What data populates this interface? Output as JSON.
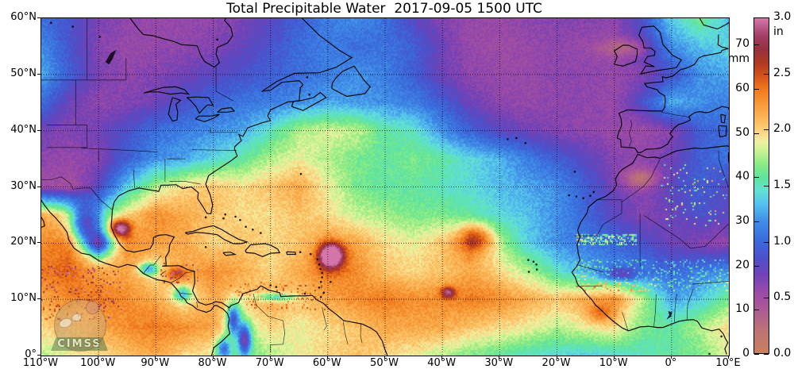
{
  "title": "Total Precipitable Water  2017-09-05 1500 UTC",
  "axes": {
    "x_tick_labels": [
      "110°W",
      "100°W",
      "90°W",
      "80°W",
      "70°W",
      "60°W",
      "50°W",
      "40°W",
      "30°W",
      "20°W",
      "10°W",
      "0°",
      "10°E"
    ],
    "y_tick_labels": [
      "0°",
      "10°N",
      "20°N",
      "30°N",
      "40°N",
      "50°N",
      "60°N"
    ],
    "lon_range": [
      -110,
      10
    ],
    "lat_range": [
      0,
      60
    ]
  },
  "colorbar": {
    "mm_ticks": [
      0,
      10,
      20,
      30,
      40,
      50,
      60,
      70
    ],
    "in_ticks": [
      "0.0",
      "0.5",
      "1.0",
      "1.5",
      "2.0",
      "2.5",
      "3.0"
    ],
    "mm_unit_label": "mm",
    "in_unit_label": "in",
    "max_mm": 76.2
  },
  "watermark": {
    "text": "CIMSS"
  },
  "chart_data": {
    "type": "heatmap",
    "quantity": "total precipitable water",
    "units": "mm",
    "lon_start": -110,
    "lon_step": 5,
    "lat_start": 60,
    "lat_step": -5,
    "grid": [
      [
        26,
        22,
        17,
        15,
        14,
        14,
        15,
        17,
        20,
        24,
        28,
        30,
        26,
        20,
        16,
        14,
        14,
        15,
        16,
        16,
        15,
        22,
        35,
        42,
        34
      ],
      [
        30,
        22,
        16,
        14,
        14,
        15,
        16,
        19,
        22,
        26,
        28,
        26,
        27,
        24,
        18,
        14,
        13,
        14,
        15,
        14,
        14,
        20,
        30,
        34,
        36
      ],
      [
        32,
        24,
        17,
        15,
        16,
        18,
        20,
        22,
        24,
        26,
        28,
        30,
        28,
        24,
        18,
        15,
        14,
        14,
        15,
        15,
        14,
        16,
        22,
        30,
        32
      ],
      [
        26,
        18,
        15,
        16,
        18,
        22,
        25,
        27,
        28,
        30,
        32,
        31,
        30,
        28,
        24,
        18,
        15,
        14,
        15,
        15,
        14,
        22,
        33,
        30,
        28
      ],
      [
        18,
        16,
        18,
        22,
        26,
        28,
        30,
        32,
        38,
        45,
        47,
        46,
        40,
        38,
        30,
        24,
        20,
        18,
        16,
        15,
        14,
        13,
        16,
        24,
        26
      ],
      [
        15,
        14,
        16,
        24,
        30,
        32,
        36,
        40,
        45,
        48,
        45,
        42,
        40,
        42,
        40,
        36,
        33,
        28,
        24,
        20,
        16,
        15,
        18,
        24,
        27
      ],
      [
        13,
        12,
        20,
        35,
        45,
        50,
        52,
        50,
        52,
        55,
        48,
        42,
        40,
        40,
        38,
        36,
        34,
        32,
        30,
        24,
        18,
        16,
        20,
        24,
        20
      ],
      [
        55,
        50,
        38,
        50,
        58,
        55,
        52,
        50,
        50,
        52,
        50,
        46,
        44,
        42,
        42,
        40,
        36,
        34,
        30,
        25,
        20,
        16,
        18,
        22,
        20
      ],
      [
        58,
        60,
        40,
        58,
        56,
        55,
        50,
        52,
        50,
        52,
        56,
        55,
        50,
        48,
        52,
        58,
        45,
        35,
        30,
        28,
        25,
        22,
        18,
        16,
        14
      ],
      [
        60,
        62,
        55,
        55,
        48,
        55,
        58,
        55,
        50,
        55,
        60,
        58,
        52,
        50,
        52,
        55,
        50,
        45,
        38,
        32,
        30,
        28,
        25,
        28,
        30
      ],
      [
        55,
        58,
        60,
        58,
        55,
        48,
        55,
        50,
        55,
        52,
        55,
        58,
        60,
        58,
        58,
        60,
        58,
        55,
        52,
        55,
        58,
        45,
        32,
        35,
        42
      ],
      [
        50,
        52,
        55,
        58,
        60,
        58,
        55,
        45,
        50,
        48,
        50,
        52,
        55,
        55,
        55,
        52,
        50,
        48,
        45,
        48,
        50,
        42,
        40,
        45,
        50
      ],
      [
        45,
        48,
        50,
        52,
        55,
        50,
        48,
        40,
        45,
        48,
        50,
        52,
        50,
        48,
        45,
        42,
        40,
        38,
        36,
        35,
        36,
        38,
        40,
        42,
        48
      ]
    ],
    "features": [
      {
        "name": "hurricane-irma",
        "lon": -59.4,
        "lat": 17.8,
        "amp": 34,
        "sx": 1.5,
        "sy": 1.5
      },
      {
        "name": "bay-of-campeche-moist-blob",
        "lon": -96.3,
        "lat": 22.6,
        "amp": 28,
        "sx": 1.3,
        "sy": 1.1
      },
      {
        "name": "honduras-moist-patch",
        "lon": -86.5,
        "lat": 14.5,
        "amp": 12,
        "sx": 1.3,
        "sy": 0.9
      },
      {
        "name": "central-atlantic-wave",
        "lon": -34,
        "lat": 21,
        "amp": 12,
        "sx": 2.0,
        "sy": 1.6
      },
      {
        "name": "tropical-wave-moist-core",
        "lon": -39,
        "lat": 11.2,
        "amp": 18,
        "sx": 0.9,
        "sy": 0.7
      },
      {
        "name": "andes-north",
        "lon": -76.5,
        "lat": 6.5,
        "amp": -26,
        "sx": 0.8,
        "sy": 2.0
      },
      {
        "name": "andes-south",
        "lon": -74.5,
        "lat": 3,
        "amp": -26,
        "sx": 0.8,
        "sy": 2.0
      },
      {
        "name": "andes-ecuador",
        "lon": -78.2,
        "lat": 1.2,
        "amp": -20,
        "sx": 0.9,
        "sy": 1.4
      },
      {
        "name": "venezuela-coastal-range",
        "lon": -69,
        "lat": 10.4,
        "amp": -16,
        "sx": 2.5,
        "sy": 0.55
      },
      {
        "name": "sierra-madre",
        "lon": -102.5,
        "lat": 23.5,
        "amp": -24,
        "sx": 1.8,
        "sy": 2.4
      },
      {
        "name": "central-mexico-plateau",
        "lon": -100,
        "lat": 19.8,
        "amp": -20,
        "sx": 1.8,
        "sy": 1.5
      },
      {
        "name": "guatemala-highlands",
        "lon": -91.3,
        "lat": 15.4,
        "amp": -18,
        "sx": 1.1,
        "sy": 0.8
      },
      {
        "name": "nicaragua-highlands",
        "lon": -85.4,
        "lat": 11,
        "amp": -16,
        "sx": 1.1,
        "sy": 0.9
      },
      {
        "name": "atlas-dry-patch",
        "lon": -5.5,
        "lat": 31.5,
        "amp": -11,
        "sx": 2.2,
        "sy": 1.3
      },
      {
        "name": "ne-atlantic-dry-streak",
        "lon": -8,
        "lat": 54.8,
        "amp": -8,
        "sx": 3.2,
        "sy": 1.1
      },
      {
        "name": "mali-dry-dip",
        "lon": -9,
        "lat": 14.3,
        "amp": -13,
        "sx": 2.3,
        "sy": 0.9
      },
      {
        "name": "off-liberia-moist",
        "lon": -12.5,
        "lat": 7.5,
        "amp": 8,
        "sx": 1.6,
        "sy": 1.1
      }
    ],
    "speckle_regions": [
      {
        "lon0": -2,
        "lon1": 10,
        "lat0": 23,
        "lat1": 34,
        "p": 0.05,
        "amp": 22
      },
      {
        "lon0": -17,
        "lon1": 10,
        "lat0": 11.5,
        "lat1": 17,
        "p": 0.16,
        "amp": 10
      },
      {
        "lon0": -16.5,
        "lon1": -6,
        "lat0": 19.5,
        "lat1": 21.6,
        "p": 0.45,
        "amp": 16
      },
      {
        "lon0": -90,
        "lon1": -82,
        "lat0": 12.5,
        "lat1": 16.5,
        "p": 0.1,
        "amp": 13
      },
      {
        "lon0": -110,
        "lon1": -96,
        "lat0": 6,
        "lat1": 16,
        "p": 0.1,
        "amp": 12
      },
      {
        "lon0": -77,
        "lon1": -60,
        "lat0": 8,
        "lat1": 13,
        "p": 0.1,
        "amp": 9
      }
    ],
    "colormap_mm_hex": [
      [
        0,
        "#c97f5e"
      ],
      [
        5,
        "#bd7374"
      ],
      [
        10,
        "#ab5a96"
      ],
      [
        14,
        "#9a49a9"
      ],
      [
        18,
        "#6f42b8"
      ],
      [
        22,
        "#4a52cc"
      ],
      [
        26,
        "#3a6ddd"
      ],
      [
        30,
        "#418ee8"
      ],
      [
        34,
        "#55c2ee"
      ],
      [
        37,
        "#62e2d4"
      ],
      [
        40,
        "#5fe49d"
      ],
      [
        43,
        "#8aec84"
      ],
      [
        46,
        "#c8f291"
      ],
      [
        48,
        "#eef2a2"
      ],
      [
        50,
        "#fbd887"
      ],
      [
        52,
        "#fcc468"
      ],
      [
        56,
        "#f9a03f"
      ],
      [
        60,
        "#f07a1c"
      ],
      [
        63,
        "#d4531a"
      ],
      [
        66,
        "#b03a22"
      ],
      [
        69,
        "#97303d"
      ],
      [
        72,
        "#a03d63"
      ],
      [
        76.2,
        "#d576ab"
      ]
    ]
  }
}
